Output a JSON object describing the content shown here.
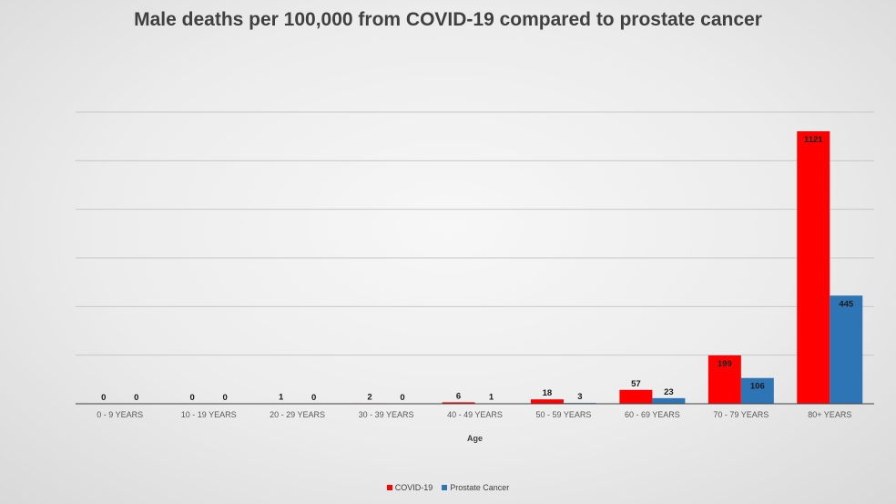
{
  "chart_data": {
    "type": "bar",
    "title": "Male deaths per 100,000 from COVID-19 compared to prostate cancer",
    "xlabel": "Age",
    "ylabel": "",
    "categories": [
      "0 - 9 YEARS",
      "10 - 19 YEARS",
      "20 - 29 YEARS",
      "30 - 39 YEARS",
      "40 - 49 YEARS",
      "50 - 59 YEARS",
      "60 - 69 YEARS",
      "70 - 79 YEARS",
      "80+ YEARS"
    ],
    "series": [
      {
        "name": "COVID-19",
        "color": "#ff0000",
        "values": [
          0,
          0,
          1,
          2,
          6,
          18,
          57,
          199,
          1121
        ]
      },
      {
        "name": "Prostate Cancer",
        "color": "#2e75b6",
        "values": [
          0,
          0,
          0,
          0,
          1,
          3,
          23,
          106,
          445
        ]
      }
    ],
    "ylim": [
      0,
      1200
    ],
    "grid": true,
    "y_tick_labels_shown": false,
    "legend_position": "bottom"
  }
}
